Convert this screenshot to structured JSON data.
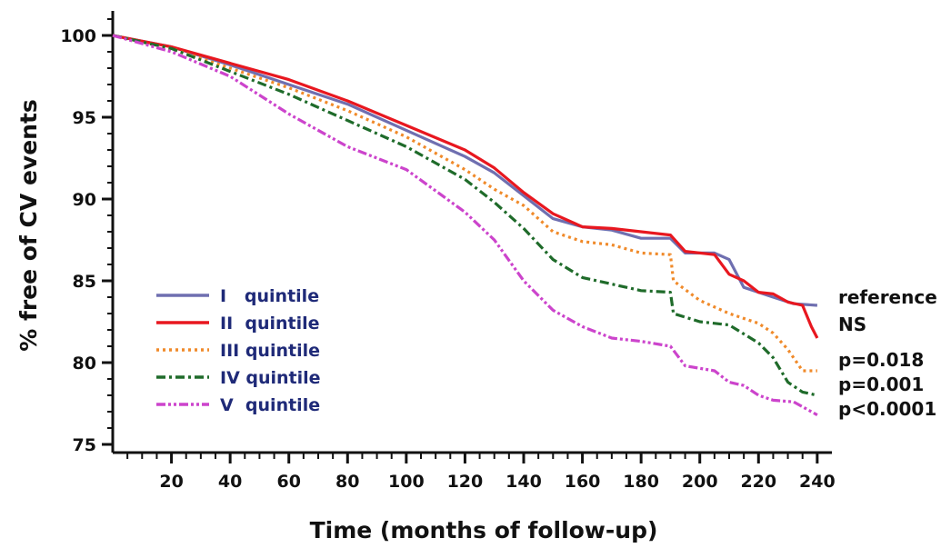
{
  "chart_data": {
    "type": "line",
    "title": "",
    "xlabel": "Time (months of follow-up)",
    "ylabel": "% free of CV events",
    "xlim": [
      0,
      245
    ],
    "ylim": [
      74.5,
      101.5
    ],
    "x_ticks": [
      20,
      40,
      60,
      80,
      100,
      120,
      140,
      160,
      180,
      200,
      220,
      240
    ],
    "y_ticks": [
      75,
      80,
      85,
      90,
      95,
      100
    ],
    "grid": false,
    "legend_position": "bottom-left",
    "series": [
      {
        "name": "I   quintile",
        "color": "#6f6fb0",
        "dash": "solid",
        "end_label": "reference",
        "points": [
          [
            0,
            100
          ],
          [
            20,
            99.3
          ],
          [
            40,
            98.2
          ],
          [
            60,
            97
          ],
          [
            80,
            95.8
          ],
          [
            100,
            94.2
          ],
          [
            120,
            92.6
          ],
          [
            130,
            91.6
          ],
          [
            140,
            90.2
          ],
          [
            150,
            88.8
          ],
          [
            160,
            88.3
          ],
          [
            170,
            88.1
          ],
          [
            180,
            87.6
          ],
          [
            190,
            87.6
          ],
          [
            195,
            86.7
          ],
          [
            205,
            86.7
          ],
          [
            210,
            86.3
          ],
          [
            215,
            84.6
          ],
          [
            225,
            84
          ],
          [
            232,
            83.6
          ],
          [
            240,
            83.5
          ]
        ]
      },
      {
        "name": "II  quintile",
        "color": "#e8171f",
        "dash": "solid",
        "end_label": "NS",
        "points": [
          [
            0,
            100
          ],
          [
            20,
            99.3
          ],
          [
            40,
            98.3
          ],
          [
            60,
            97.3
          ],
          [
            80,
            96
          ],
          [
            100,
            94.5
          ],
          [
            120,
            93
          ],
          [
            130,
            91.9
          ],
          [
            140,
            90.4
          ],
          [
            150,
            89.1
          ],
          [
            160,
            88.3
          ],
          [
            170,
            88.2
          ],
          [
            180,
            88
          ],
          [
            190,
            87.8
          ],
          [
            195,
            86.8
          ],
          [
            205,
            86.6
          ],
          [
            210,
            85.4
          ],
          [
            215,
            85
          ],
          [
            220,
            84.3
          ],
          [
            225,
            84.2
          ],
          [
            230,
            83.7
          ],
          [
            235,
            83.5
          ],
          [
            238,
            82.2
          ],
          [
            240,
            81.5
          ]
        ]
      },
      {
        "name": "III quintile",
        "color": "#f08a2a",
        "dash": "dotted",
        "end_label": "p=0.018",
        "points": [
          [
            0,
            100
          ],
          [
            20,
            99.2
          ],
          [
            40,
            98
          ],
          [
            60,
            96.8
          ],
          [
            80,
            95.4
          ],
          [
            100,
            93.8
          ],
          [
            120,
            91.8
          ],
          [
            130,
            90.6
          ],
          [
            140,
            89.6
          ],
          [
            150,
            88
          ],
          [
            160,
            87.4
          ],
          [
            170,
            87.2
          ],
          [
            180,
            86.7
          ],
          [
            190,
            86.6
          ],
          [
            191,
            85
          ],
          [
            200,
            83.8
          ],
          [
            210,
            83
          ],
          [
            220,
            82.4
          ],
          [
            225,
            81.8
          ],
          [
            230,
            80.8
          ],
          [
            235,
            79.5
          ],
          [
            240,
            79.5
          ]
        ]
      },
      {
        "name": "IV quintile",
        "color": "#1f6b2a",
        "dash": "dashdot",
        "end_label": "p=0.001",
        "points": [
          [
            0,
            100
          ],
          [
            20,
            99.2
          ],
          [
            40,
            97.8
          ],
          [
            60,
            96.4
          ],
          [
            80,
            94.8
          ],
          [
            100,
            93.2
          ],
          [
            120,
            91.2
          ],
          [
            130,
            89.8
          ],
          [
            140,
            88.2
          ],
          [
            150,
            86.3
          ],
          [
            160,
            85.2
          ],
          [
            170,
            84.8
          ],
          [
            180,
            84.4
          ],
          [
            190,
            84.3
          ],
          [
            191,
            83
          ],
          [
            200,
            82.5
          ],
          [
            210,
            82.3
          ],
          [
            220,
            81.2
          ],
          [
            225,
            80.3
          ],
          [
            230,
            78.8
          ],
          [
            235,
            78.2
          ],
          [
            240,
            78
          ]
        ]
      },
      {
        "name": "V  quintile",
        "color": "#cc44cc",
        "dash": "dashdotdot",
        "end_label": "p<0.0001",
        "points": [
          [
            0,
            100
          ],
          [
            20,
            99
          ],
          [
            40,
            97.5
          ],
          [
            60,
            95.2
          ],
          [
            80,
            93.2
          ],
          [
            100,
            91.8
          ],
          [
            120,
            89.2
          ],
          [
            130,
            87.5
          ],
          [
            140,
            85
          ],
          [
            150,
            83.2
          ],
          [
            160,
            82.2
          ],
          [
            170,
            81.5
          ],
          [
            180,
            81.3
          ],
          [
            190,
            81
          ],
          [
            195,
            79.8
          ],
          [
            205,
            79.5
          ],
          [
            210,
            78.8
          ],
          [
            215,
            78.6
          ],
          [
            220,
            78
          ],
          [
            225,
            77.7
          ],
          [
            232,
            77.6
          ],
          [
            240,
            76.8
          ]
        ]
      }
    ]
  }
}
